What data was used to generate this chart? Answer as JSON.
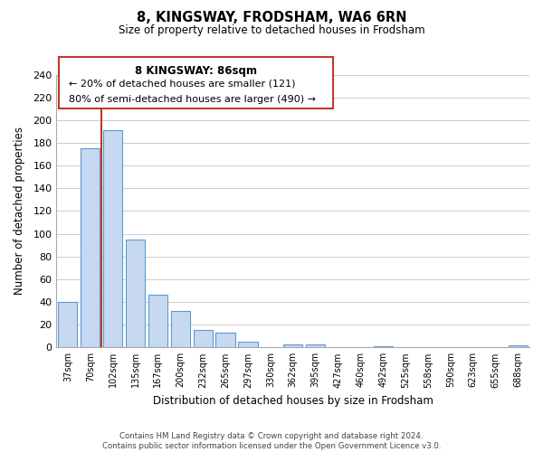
{
  "title": "8, KINGSWAY, FRODSHAM, WA6 6RN",
  "subtitle": "Size of property relative to detached houses in Frodsham",
  "xlabel": "Distribution of detached houses by size in Frodsham",
  "ylabel": "Number of detached properties",
  "bar_labels": [
    "37sqm",
    "70sqm",
    "102sqm",
    "135sqm",
    "167sqm",
    "200sqm",
    "232sqm",
    "265sqm",
    "297sqm",
    "330sqm",
    "362sqm",
    "395sqm",
    "427sqm",
    "460sqm",
    "492sqm",
    "525sqm",
    "558sqm",
    "590sqm",
    "623sqm",
    "655sqm",
    "688sqm"
  ],
  "bar_values": [
    40,
    175,
    191,
    95,
    46,
    32,
    15,
    13,
    5,
    0,
    3,
    3,
    0,
    0,
    1,
    0,
    0,
    0,
    0,
    0,
    2
  ],
  "bar_color": "#c6d9f0",
  "bar_edge_color": "#5b9bd5",
  "vline_color": "#c0392b",
  "vline_x": 1.5,
  "ylim": [
    0,
    240
  ],
  "yticks": [
    0,
    20,
    40,
    60,
    80,
    100,
    120,
    140,
    160,
    180,
    200,
    220,
    240
  ],
  "annotation_title": "8 KINGSWAY: 86sqm",
  "annotation_line1": "← 20% of detached houses are smaller (121)",
  "annotation_line2": "80% of semi-detached houses are larger (490) →",
  "annotation_box_color": "#ffffff",
  "annotation_border_color": "#c0392b",
  "footer_line1": "Contains HM Land Registry data © Crown copyright and database right 2024.",
  "footer_line2": "Contains public sector information licensed under the Open Government Licence v3.0.",
  "background_color": "#ffffff",
  "grid_color": "#cccccc"
}
